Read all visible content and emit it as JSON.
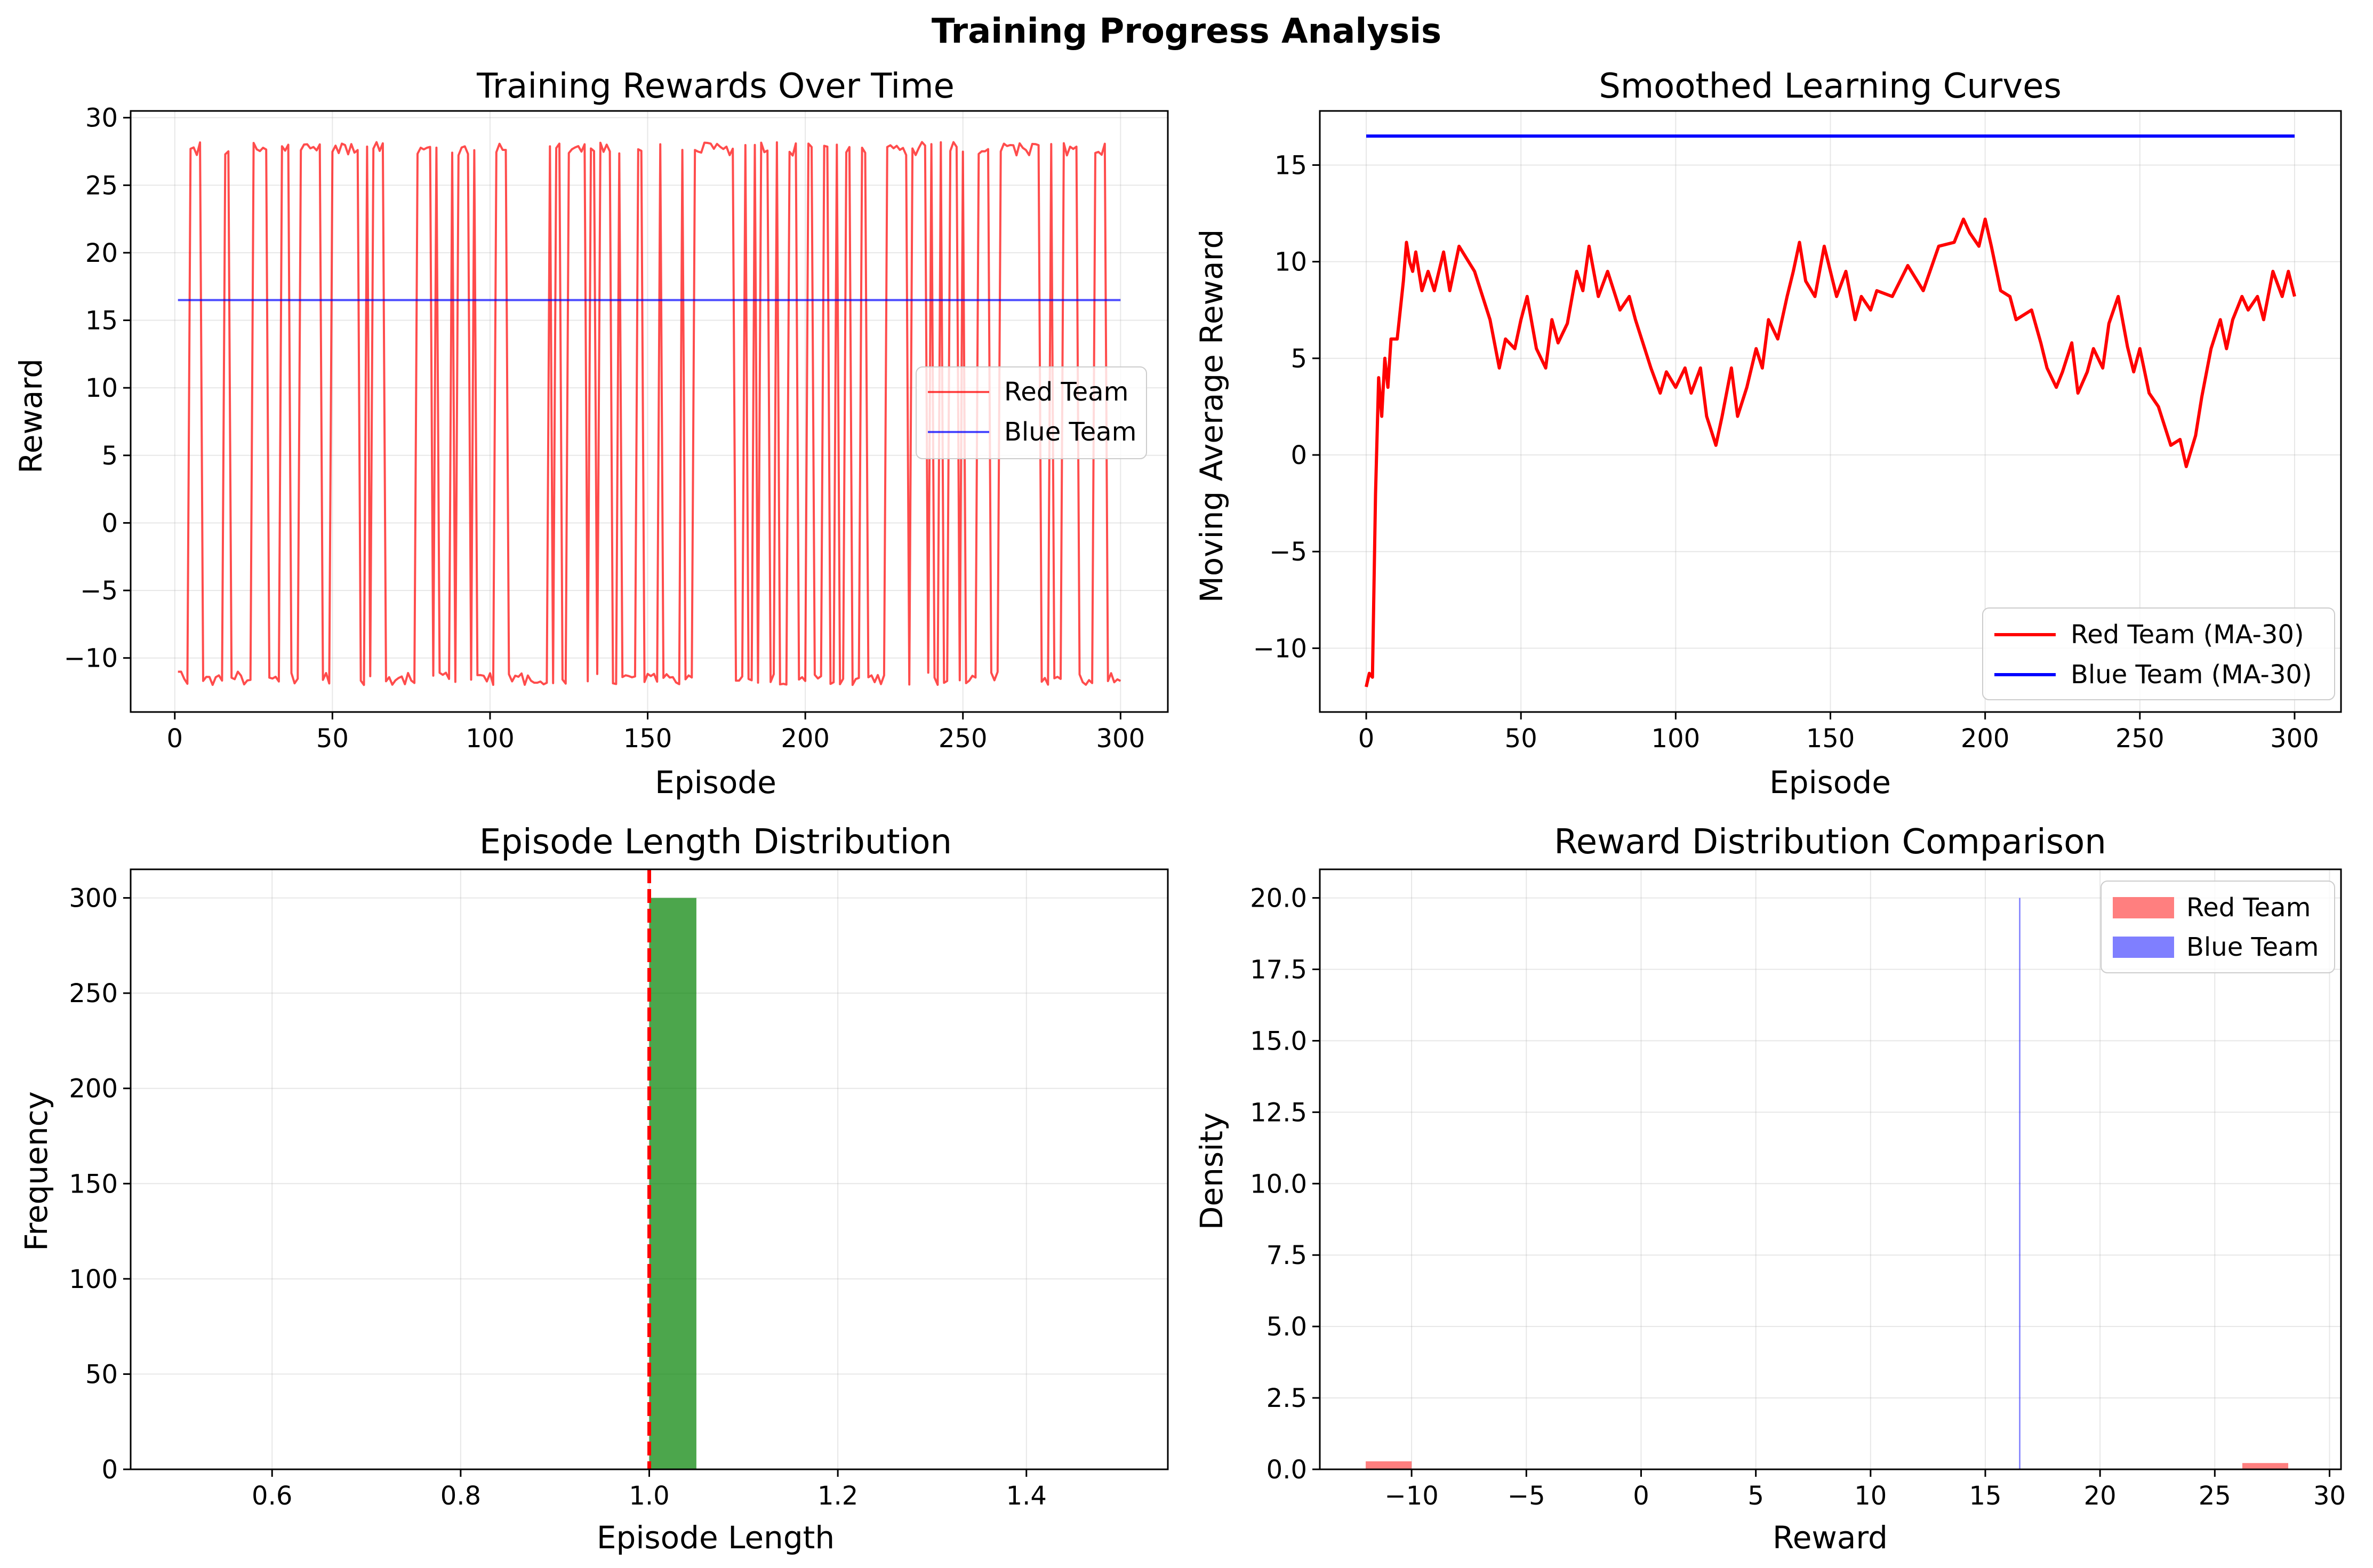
{
  "figure": {
    "suptitle": "Training Progress Analysis"
  },
  "colors": {
    "red": "#ff0000",
    "blue": "#0000ff",
    "green": "#008000"
  },
  "chart_data": [
    {
      "id": "rewards",
      "type": "line",
      "title": "Training Rewards Over Time",
      "xlabel": "Episode",
      "ylabel": "Reward",
      "xlim": [
        -14,
        315
      ],
      "ylim": [
        -14,
        30.5
      ],
      "xticks": [
        0,
        50,
        100,
        150,
        200,
        250,
        300
      ],
      "yticks": [
        -10,
        -5,
        0,
        5,
        10,
        15,
        20,
        25,
        30
      ],
      "grid": true,
      "legend_position": "center-right",
      "series": [
        {
          "name": "Red Team",
          "color": "#ff0000",
          "alpha": 0.7,
          "generator": "alternating",
          "x_start": 1,
          "x_end": 300,
          "high": [
            27.2,
            28.2
          ],
          "low": [
            -11,
            -12
          ]
        },
        {
          "name": "Blue Team",
          "color": "#0000ff",
          "alpha": 0.7,
          "x": [
            1,
            300
          ],
          "y": [
            16.5,
            16.5
          ]
        }
      ]
    },
    {
      "id": "smoothed",
      "type": "line",
      "title": "Smoothed Learning Curves",
      "xlabel": "Episode",
      "ylabel": "Moving Average Reward",
      "xlim": [
        -15,
        315
      ],
      "ylim": [
        -13.3,
        17.8
      ],
      "xticks": [
        0,
        50,
        100,
        150,
        200,
        250,
        300
      ],
      "yticks": [
        -10,
        -5,
        0,
        5,
        10,
        15
      ],
      "grid": true,
      "legend_position": "lower right",
      "series": [
        {
          "name": "Red Team (MA-30)",
          "color": "#ff0000",
          "x": [
            0,
            1,
            2,
            3,
            4,
            5,
            6,
            7,
            8,
            10,
            12,
            13,
            14,
            15,
            16,
            18,
            20,
            22,
            25,
            27,
            30,
            35,
            40,
            43,
            45,
            48,
            50,
            52,
            55,
            58,
            60,
            62,
            65,
            68,
            70,
            72,
            75,
            78,
            80,
            82,
            85,
            87,
            90,
            92,
            95,
            97,
            100,
            103,
            105,
            108,
            110,
            113,
            115,
            118,
            120,
            123,
            126,
            128,
            130,
            133,
            136,
            138,
            140,
            142,
            145,
            148,
            150,
            152,
            155,
            158,
            160,
            163,
            165,
            170,
            175,
            180,
            185,
            190,
            193,
            195,
            198,
            200,
            202,
            205,
            208,
            210,
            215,
            218,
            220,
            223,
            225,
            228,
            230,
            233,
            235,
            238,
            240,
            243,
            246,
            248,
            250,
            253,
            256,
            258,
            260,
            263,
            265,
            268,
            270,
            273,
            276,
            278,
            280,
            283,
            285,
            288,
            290,
            293,
            296,
            298,
            300
          ],
          "y": [
            -12,
            -11.3,
            -11.5,
            -2,
            4,
            2,
            5,
            3.5,
            6,
            6,
            9,
            11,
            10,
            9.5,
            10.5,
            8.5,
            9.5,
            8.5,
            10.5,
            8.5,
            10.8,
            9.5,
            7,
            4.5,
            6,
            5.5,
            7,
            8.2,
            5.5,
            4.5,
            7,
            5.8,
            6.8,
            9.5,
            8.5,
            10.8,
            8.2,
            9.5,
            8.5,
            7.5,
            8.2,
            7,
            5.5,
            4.5,
            3.2,
            4.3,
            3.5,
            4.5,
            3.2,
            4.5,
            2,
            0.5,
            2,
            4.5,
            2,
            3.5,
            5.5,
            4.5,
            7,
            6,
            8.2,
            9.5,
            11,
            9,
            8.2,
            10.8,
            9.5,
            8.2,
            9.5,
            7,
            8.2,
            7.5,
            8.5,
            8.2,
            9.8,
            8.5,
            10.8,
            11,
            12.2,
            11.5,
            10.8,
            12.2,
            10.8,
            8.5,
            8.2,
            7,
            7.5,
            5.8,
            4.5,
            3.5,
            4.3,
            5.8,
            3.2,
            4.3,
            5.5,
            4.5,
            6.8,
            8.2,
            5.6,
            4.3,
            5.5,
            3.2,
            2.5,
            1.5,
            0.5,
            0.8,
            -0.6,
            1,
            3,
            5.5,
            7,
            5.5,
            7,
            8.2,
            7.5,
            8.2,
            7,
            9.5,
            8.2,
            9.5,
            8.2
          ]
        },
        {
          "name": "Blue Team (MA-30)",
          "color": "#0000ff",
          "x": [
            0,
            300
          ],
          "y": [
            16.5,
            16.5
          ]
        }
      ]
    },
    {
      "id": "length",
      "type": "bar",
      "title": "Episode Length Distribution",
      "xlabel": "Episode Length",
      "ylabel": "Frequency",
      "xlim": [
        0.45,
        1.55
      ],
      "ylim": [
        0,
        315
      ],
      "xticks": [
        0.6,
        0.8,
        1.0,
        1.2,
        1.4
      ],
      "yticks": [
        0,
        50,
        100,
        150,
        200,
        250,
        300
      ],
      "grid": true,
      "bars": [
        {
          "x0": 1.0,
          "x1": 1.05,
          "value": 300,
          "color": "#008000",
          "alpha": 0.7
        }
      ],
      "vline": {
        "x": 1.0,
        "color": "#ff0000",
        "style": "dashed"
      }
    },
    {
      "id": "distribution",
      "type": "bar",
      "title": "Reward Distribution Comparison",
      "xlabel": "Reward",
      "ylabel": "Density",
      "xlim": [
        -14,
        30.5
      ],
      "ylim": [
        0,
        21
      ],
      "xticks": [
        -10,
        -5,
        0,
        5,
        10,
        15,
        20,
        25,
        30
      ],
      "yticks": [
        0.0,
        2.5,
        5.0,
        7.5,
        10.0,
        12.5,
        15.0,
        17.5,
        20.0
      ],
      "grid": true,
      "legend_position": "upper right",
      "series": [
        {
          "name": "Red Team",
          "color": "#ff0000",
          "alpha": 0.5,
          "bars": [
            {
              "x0": -12,
              "x1": -10,
              "value": 0.28
            },
            {
              "x0": 26.2,
              "x1": 28.2,
              "value": 0.22
            }
          ]
        },
        {
          "name": "Blue Team",
          "color": "#0000ff",
          "alpha": 0.5,
          "bars": [
            {
              "x0": 16.47,
              "x1": 16.53,
              "value": 20.0
            }
          ]
        }
      ]
    }
  ]
}
